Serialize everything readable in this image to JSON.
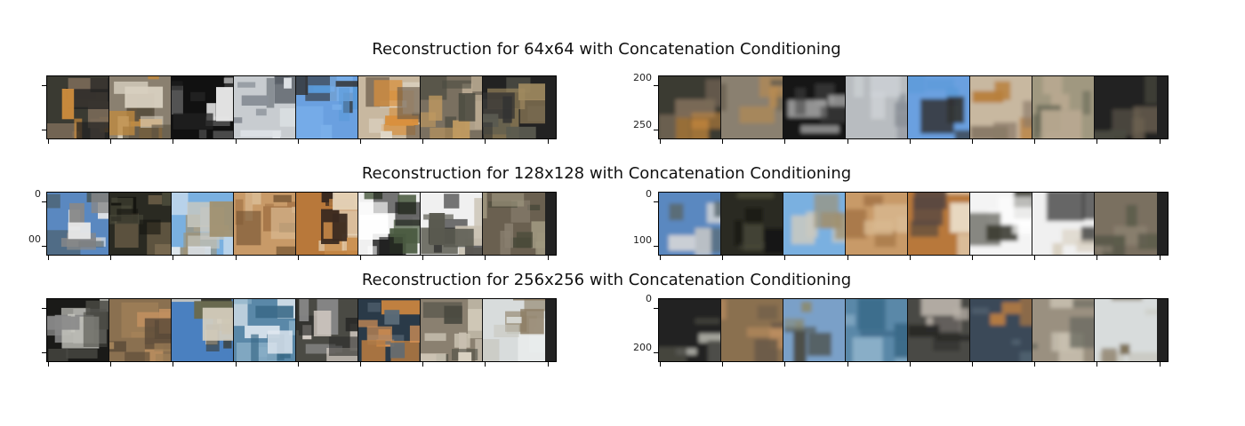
{
  "rows": [
    {
      "title": "Reconstruction for 64x64 with Concatenation Conditioning",
      "left_yticks": [],
      "right_yticks": [
        "200",
        "250"
      ]
    },
    {
      "title": "Reconstruction for 128x128 with Concatenation Conditioning",
      "left_yticks": [
        "0",
        "00"
      ],
      "right_yticks": [
        "0",
        "100"
      ]
    },
    {
      "title": "Reconstruction for 256x256 with Concatenation Conditioning",
      "left_yticks": [],
      "right_yticks": [
        "0",
        "200"
      ]
    }
  ]
}
